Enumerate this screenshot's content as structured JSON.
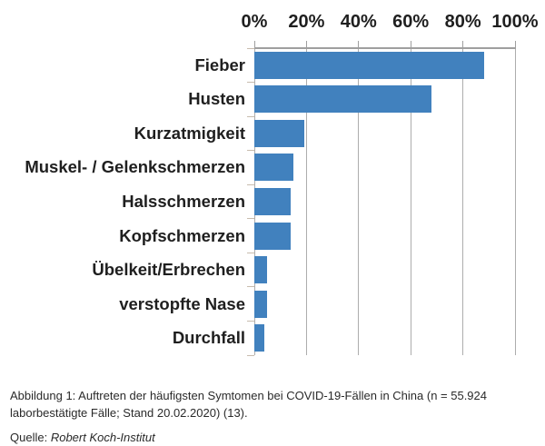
{
  "chart_data": {
    "type": "bar",
    "orientation": "horizontal",
    "categories": [
      "Fieber",
      "Husten",
      "Kurzatmigkeit",
      "Muskel- / Gelenkschmerzen",
      "Halsschmerzen",
      "Kopfschmerzen",
      "Übelkeit/Erbrechen",
      "verstopfte Nase",
      "Durchfall"
    ],
    "values": [
      88,
      68,
      19,
      15,
      14,
      14,
      5,
      5,
      4
    ],
    "value_unit": "%",
    "xlim": [
      0,
      100
    ],
    "x_ticks": [
      0,
      20,
      40,
      60,
      80,
      100
    ],
    "x_tick_labels": [
      "0%",
      "20%",
      "40%",
      "60%",
      "80%",
      "100%"
    ],
    "grid": true,
    "axis_position": "top",
    "bar_color": "#4181BE",
    "gridline_color": "#ADADAD",
    "axis_color": "#9F9F9F",
    "y_tick_color": "#C8BCAE"
  },
  "caption": {
    "figure_text": "Abbildung 1: Auftreten der häufigsten Symtomen bei COVID-19-Fällen in China (n = 55.924 laborbestätigte Fälle; Stand 20.02.2020) (13).",
    "source_label": "Quelle:",
    "source_name": "Robert Koch-Institut"
  }
}
